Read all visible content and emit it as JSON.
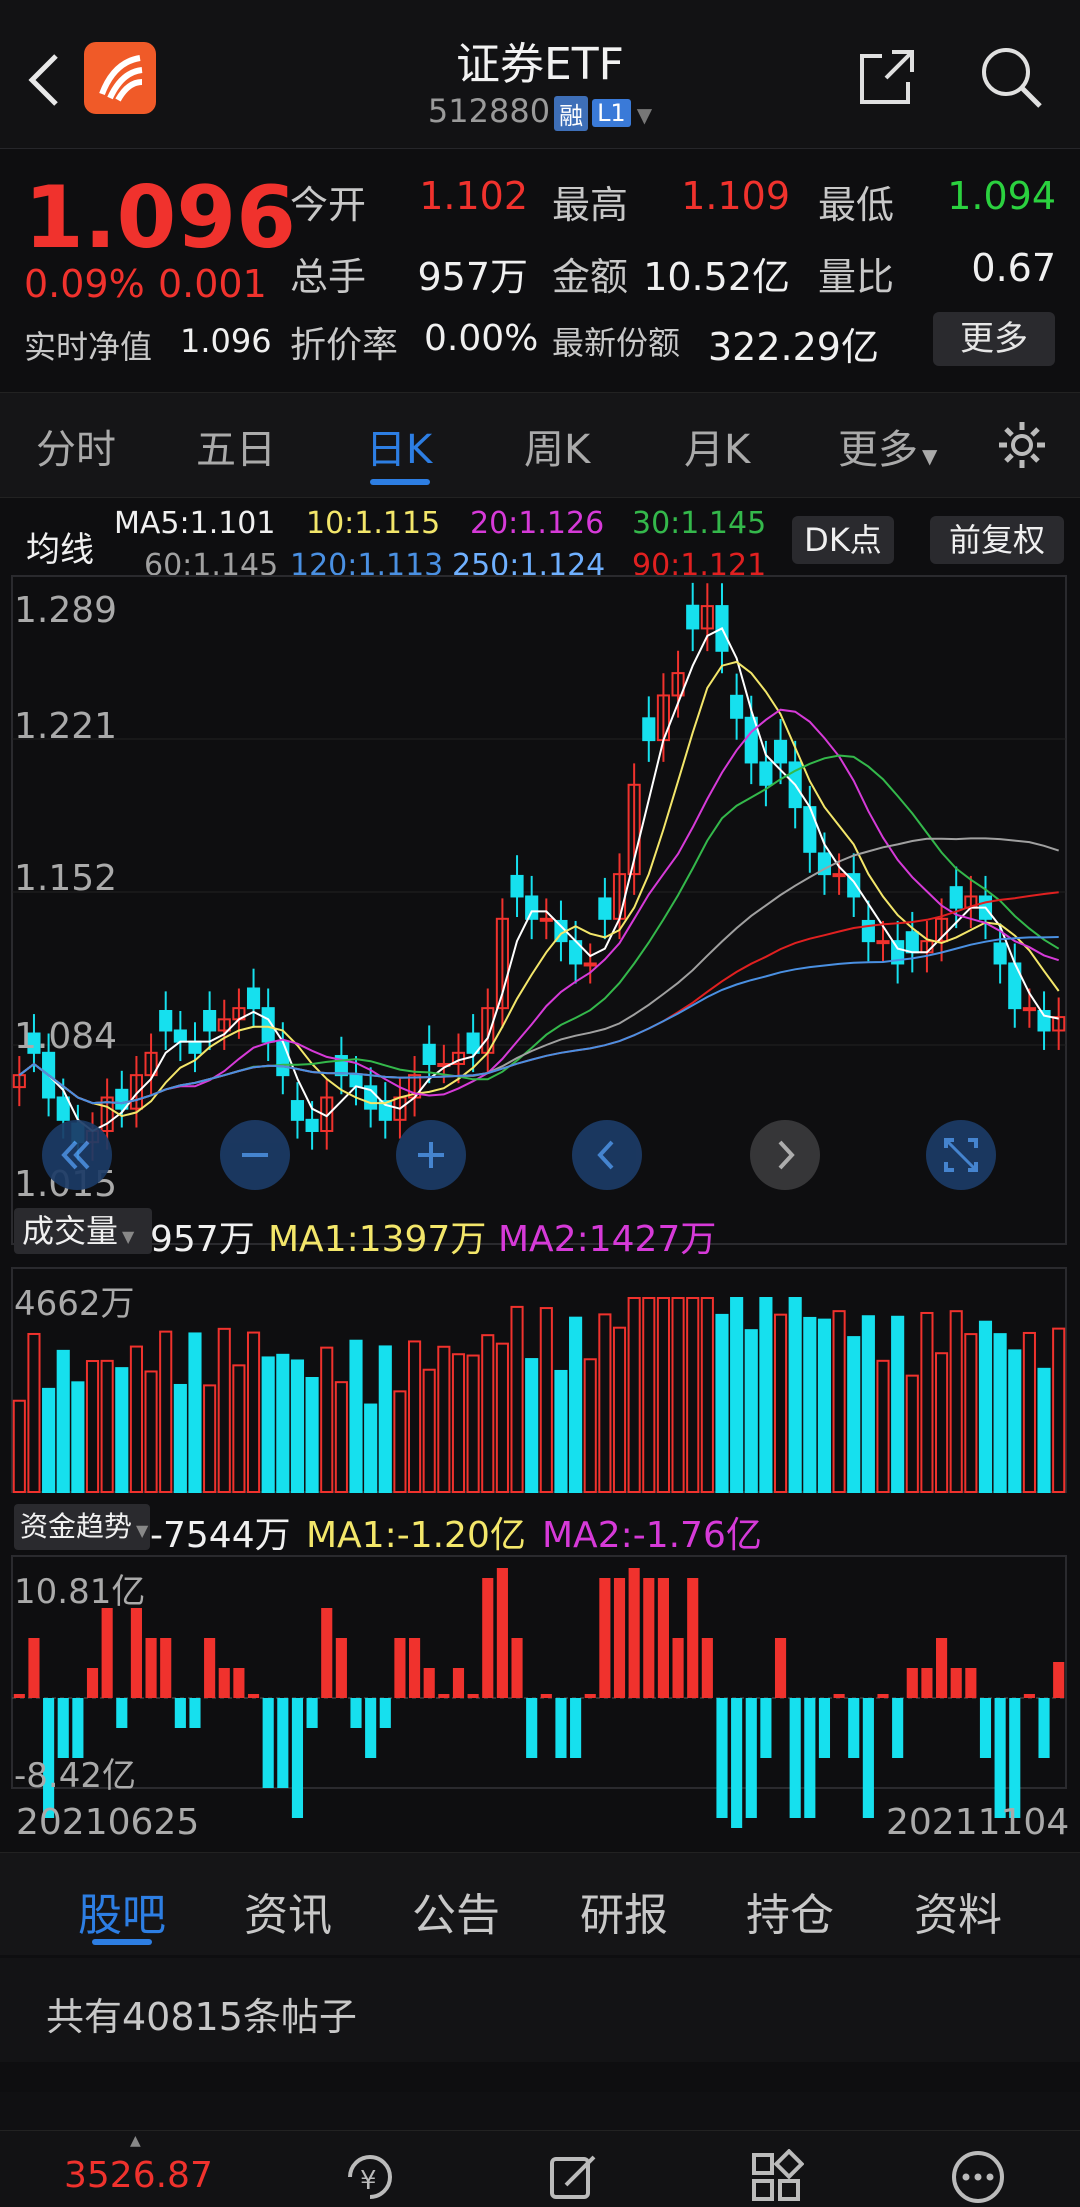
{
  "header": {
    "title": "证券ETF",
    "code": "512880",
    "tag_rong": "融",
    "tag_level": "L1"
  },
  "quote": {
    "price": "1.096",
    "change_pct": "0.09%",
    "change_abs": "0.001",
    "nav_label": "实时净值",
    "nav_value": "1.096",
    "rows": [
      {
        "l1": "今开",
        "v1": "1.102",
        "c1": "red",
        "l2": "最高",
        "v2": "1.109",
        "c2": "red",
        "l3": "最低",
        "v3": "1.094",
        "c3": "green"
      },
      {
        "l1": "总手",
        "v1": "957万",
        "c1": "white",
        "l2": "金额",
        "v2": "10.52亿",
        "c2": "white",
        "l3": "量比",
        "v3": "0.67",
        "c3": "white"
      }
    ],
    "row3": {
      "l1": "折价率",
      "v1": "0.00%",
      "l2": "最新份额",
      "v2": "322.29亿"
    },
    "more": "更多"
  },
  "tabs": [
    "分时",
    "五日",
    "日K",
    "周K",
    "月K",
    "更多"
  ],
  "ma_legend": {
    "title": "均线",
    "ma5": "MA5:1.101",
    "ma10": "10:1.115",
    "ma20": "20:1.126",
    "ma30": "30:1.145",
    "ma60": "60:1.145",
    "ma120": "120:1.113",
    "ma250": "250:1.124",
    "ma90": "90:1.121",
    "btn_dk": "DK点",
    "btn_fq": "前复权"
  },
  "price_axis": {
    "max": "1.289",
    "l2": "1.221",
    "l3": "1.152",
    "l4": "1.084",
    "min": "1.015"
  },
  "volume": {
    "label": "成交量",
    "value": "957万",
    "ma1": "MA1:1397万",
    "ma2": "MA2:1427万",
    "max": "4662万"
  },
  "fund": {
    "label": "资金趋势",
    "value": "-7544万",
    "ma1": "MA1:-1.20亿",
    "ma2": "MA2:-1.76亿",
    "max": "10.81亿",
    "min": "-8.42亿"
  },
  "dates": {
    "start": "20210625",
    "end": "20211104"
  },
  "news_tabs": [
    "股吧",
    "资讯",
    "公告",
    "研报",
    "持仓",
    "资料"
  ],
  "post_count": "共有40815条帖子",
  "index_value": "3526.87",
  "colors": {
    "up": "#f0322d",
    "down": "#16e0ee",
    "ma5": "#ffffff",
    "ma10": "#f3e66a",
    "ma20": "#d63ad8",
    "ma30": "#34b84b",
    "ma60": "#a0a0a0",
    "ma90": "#e02020",
    "ma120": "#4a90e2",
    "accent": "#2d7ee3"
  },
  "chart_data": {
    "type": "candlestick",
    "x_range": [
      "20210625",
      "20211104"
    ],
    "ylim": [
      1.015,
      1.289
    ],
    "closes": [
      1.07,
      1.08,
      1.06,
      1.05,
      1.04,
      1.045,
      1.06,
      1.055,
      1.07,
      1.08,
      1.09,
      1.085,
      1.08,
      1.09,
      1.095,
      1.1,
      1.1,
      1.085,
      1.07,
      1.05,
      1.045,
      1.06,
      1.07,
      1.065,
      1.055,
      1.05,
      1.06,
      1.07,
      1.075,
      1.075,
      1.08,
      1.08,
      1.1,
      1.14,
      1.15,
      1.14,
      1.14,
      1.13,
      1.12,
      1.12,
      1.14,
      1.16,
      1.2,
      1.22,
      1.24,
      1.25,
      1.27,
      1.28,
      1.26,
      1.23,
      1.21,
      1.2,
      1.21,
      1.19,
      1.17,
      1.16,
      1.16,
      1.15,
      1.13,
      1.13,
      1.12,
      1.125,
      1.13,
      1.14,
      1.145,
      1.15,
      1.14,
      1.12,
      1.1,
      1.1,
      1.09,
      1.096
    ]
  }
}
